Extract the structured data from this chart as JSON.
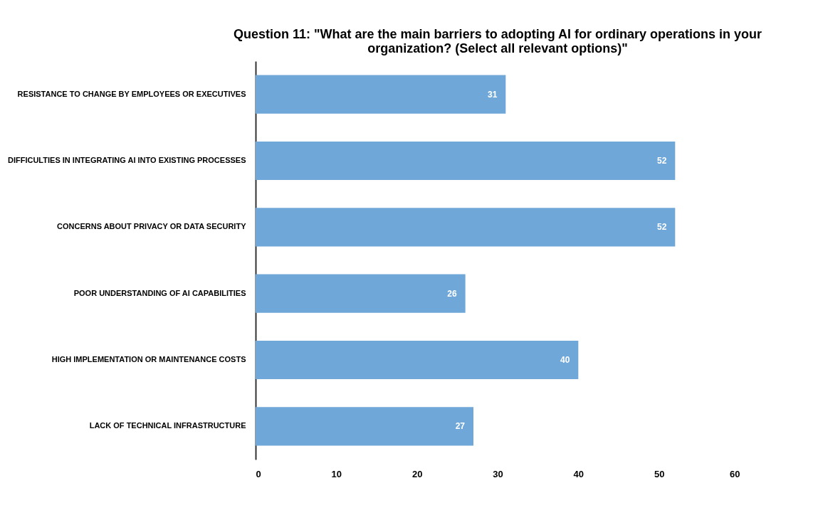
{
  "chart_data": {
    "type": "bar",
    "orientation": "horizontal",
    "title": "Question 11: \"What are the main barriers to adopting AI for ordinary operations in your organization? (Select all relevant options)\"",
    "categories": [
      "RESISTANCE TO CHANGE BY EMPLOYEES OR EXECUTIVES",
      "DIFFICULTIES IN INTEGRATING AI INTO EXISTING PROCESSES",
      "CONCERNS ABOUT PRIVACY OR DATA SECURITY",
      "POOR UNDERSTANDING OF AI CAPABILITIES",
      "HIGH IMPLEMENTATION OR MAINTENANCE COSTS",
      "LACK OF TECHNICAL INFRASTRUCTURE"
    ],
    "values": [
      31,
      52,
      52,
      26,
      40,
      27
    ],
    "color": "#6fa8d8",
    "xlim": [
      0,
      60
    ],
    "xticks": [
      0,
      10,
      20,
      30,
      40,
      50,
      60
    ],
    "grid": false,
    "data_labels": true
  }
}
